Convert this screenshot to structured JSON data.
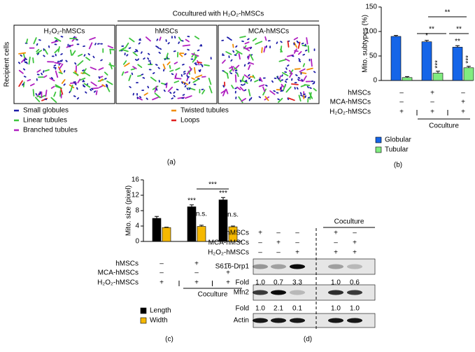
{
  "panel_a": {
    "label": "(a)",
    "header": "Cocultured with H₂O₂-hMSCs",
    "y_label": "Recipient cells",
    "images": [
      "H₂O₂-hMSCs",
      "hMSCs",
      "MCA-hMSCs"
    ],
    "legend": [
      {
        "name": "Small globules",
        "color": "#1c1ca8"
      },
      {
        "name": "Linear tubules",
        "color": "#3cc43c"
      },
      {
        "name": "Branched tubules",
        "color": "#b020c0"
      },
      {
        "name": "Twisted tubules",
        "color": "#f08c00"
      },
      {
        "name": "Loops",
        "color": "#e02020"
      }
    ]
  },
  "chart_data": [
    {
      "type": "bar",
      "panel_label": "(b)",
      "ylabel": "Mito. subtypes (%)",
      "series": [
        {
          "name": "Globular",
          "color": "#1565e8",
          "values": [
            90,
            79,
            68
          ],
          "errors": [
            2,
            3,
            3
          ],
          "significance": [
            null,
            "*",
            "**"
          ]
        },
        {
          "name": "Tubular",
          "color": "#80ec80",
          "values": [
            6,
            15,
            26
          ],
          "errors": [
            2,
            4,
            3
          ],
          "significance": [
            null,
            "***",
            "***"
          ]
        }
      ],
      "ylim": [
        0,
        150
      ],
      "yticks": [
        0,
        50,
        100,
        150
      ],
      "brackets": [
        "**",
        "**",
        "**"
      ],
      "treatments": [
        {
          "label": "hMSCs",
          "values": [
            "–",
            "+",
            "–"
          ]
        },
        {
          "label": "MCA-hMSCs",
          "values": [
            "–",
            "–",
            "+"
          ]
        },
        {
          "label": "H₂O₂-hMSCs",
          "values": [
            "+",
            "+",
            "+"
          ]
        }
      ],
      "group_label": "Coculture"
    },
    {
      "type": "bar",
      "panel_label": "(c)",
      "ylabel": "Mito. size (pixel)",
      "series": [
        {
          "name": "Length",
          "color": "#000000",
          "values": [
            6.0,
            9.0,
            10.8
          ],
          "errors": [
            0.5,
            0.5,
            0.6
          ],
          "significance": [
            null,
            "***",
            "***"
          ]
        },
        {
          "name": "Width",
          "color": "#f5b800",
          "values": [
            3.6,
            3.9,
            3.8
          ],
          "errors": [
            0.1,
            0.3,
            0.2
          ],
          "significance": [
            null,
            "n.s.",
            "n.s."
          ]
        }
      ],
      "ylim": [
        0,
        16
      ],
      "yticks": [
        0,
        4,
        8,
        12,
        16
      ],
      "brackets": [
        "***"
      ],
      "treatments": [
        {
          "label": "hMSCs",
          "values": [
            "–",
            "+",
            "–"
          ]
        },
        {
          "label": "MCA-hMSCs",
          "values": [
            "–",
            "–",
            "+"
          ]
        },
        {
          "label": "H₂O₂-hMSCs",
          "values": [
            "+",
            "+",
            "+"
          ]
        }
      ],
      "group_label": "Coculture"
    }
  ],
  "panel_d": {
    "label": "(d)",
    "group_label": "Coculture",
    "treatments": [
      {
        "label": "hMSCs",
        "values": [
          "+",
          "–",
          "–",
          "+",
          "–"
        ]
      },
      {
        "label": "MCA-hMSCs",
        "values": [
          "–",
          "+",
          "–",
          "–",
          "+"
        ]
      },
      {
        "label": "H₂O₂-hMSCs",
        "values": [
          "–",
          "–",
          "+",
          "+",
          "+"
        ]
      }
    ],
    "blots": [
      {
        "name": "S616-Drp1",
        "fold_label": "Fold",
        "fold": [
          "1.0",
          "0.7",
          "3.3",
          "1.0",
          "0.6"
        ]
      },
      {
        "name": "Mfn2",
        "fold_label": "Fold",
        "fold": [
          "1.0",
          "2.1",
          "0.1",
          "1.0",
          "1.0"
        ]
      },
      {
        "name": "Actin"
      }
    ]
  }
}
